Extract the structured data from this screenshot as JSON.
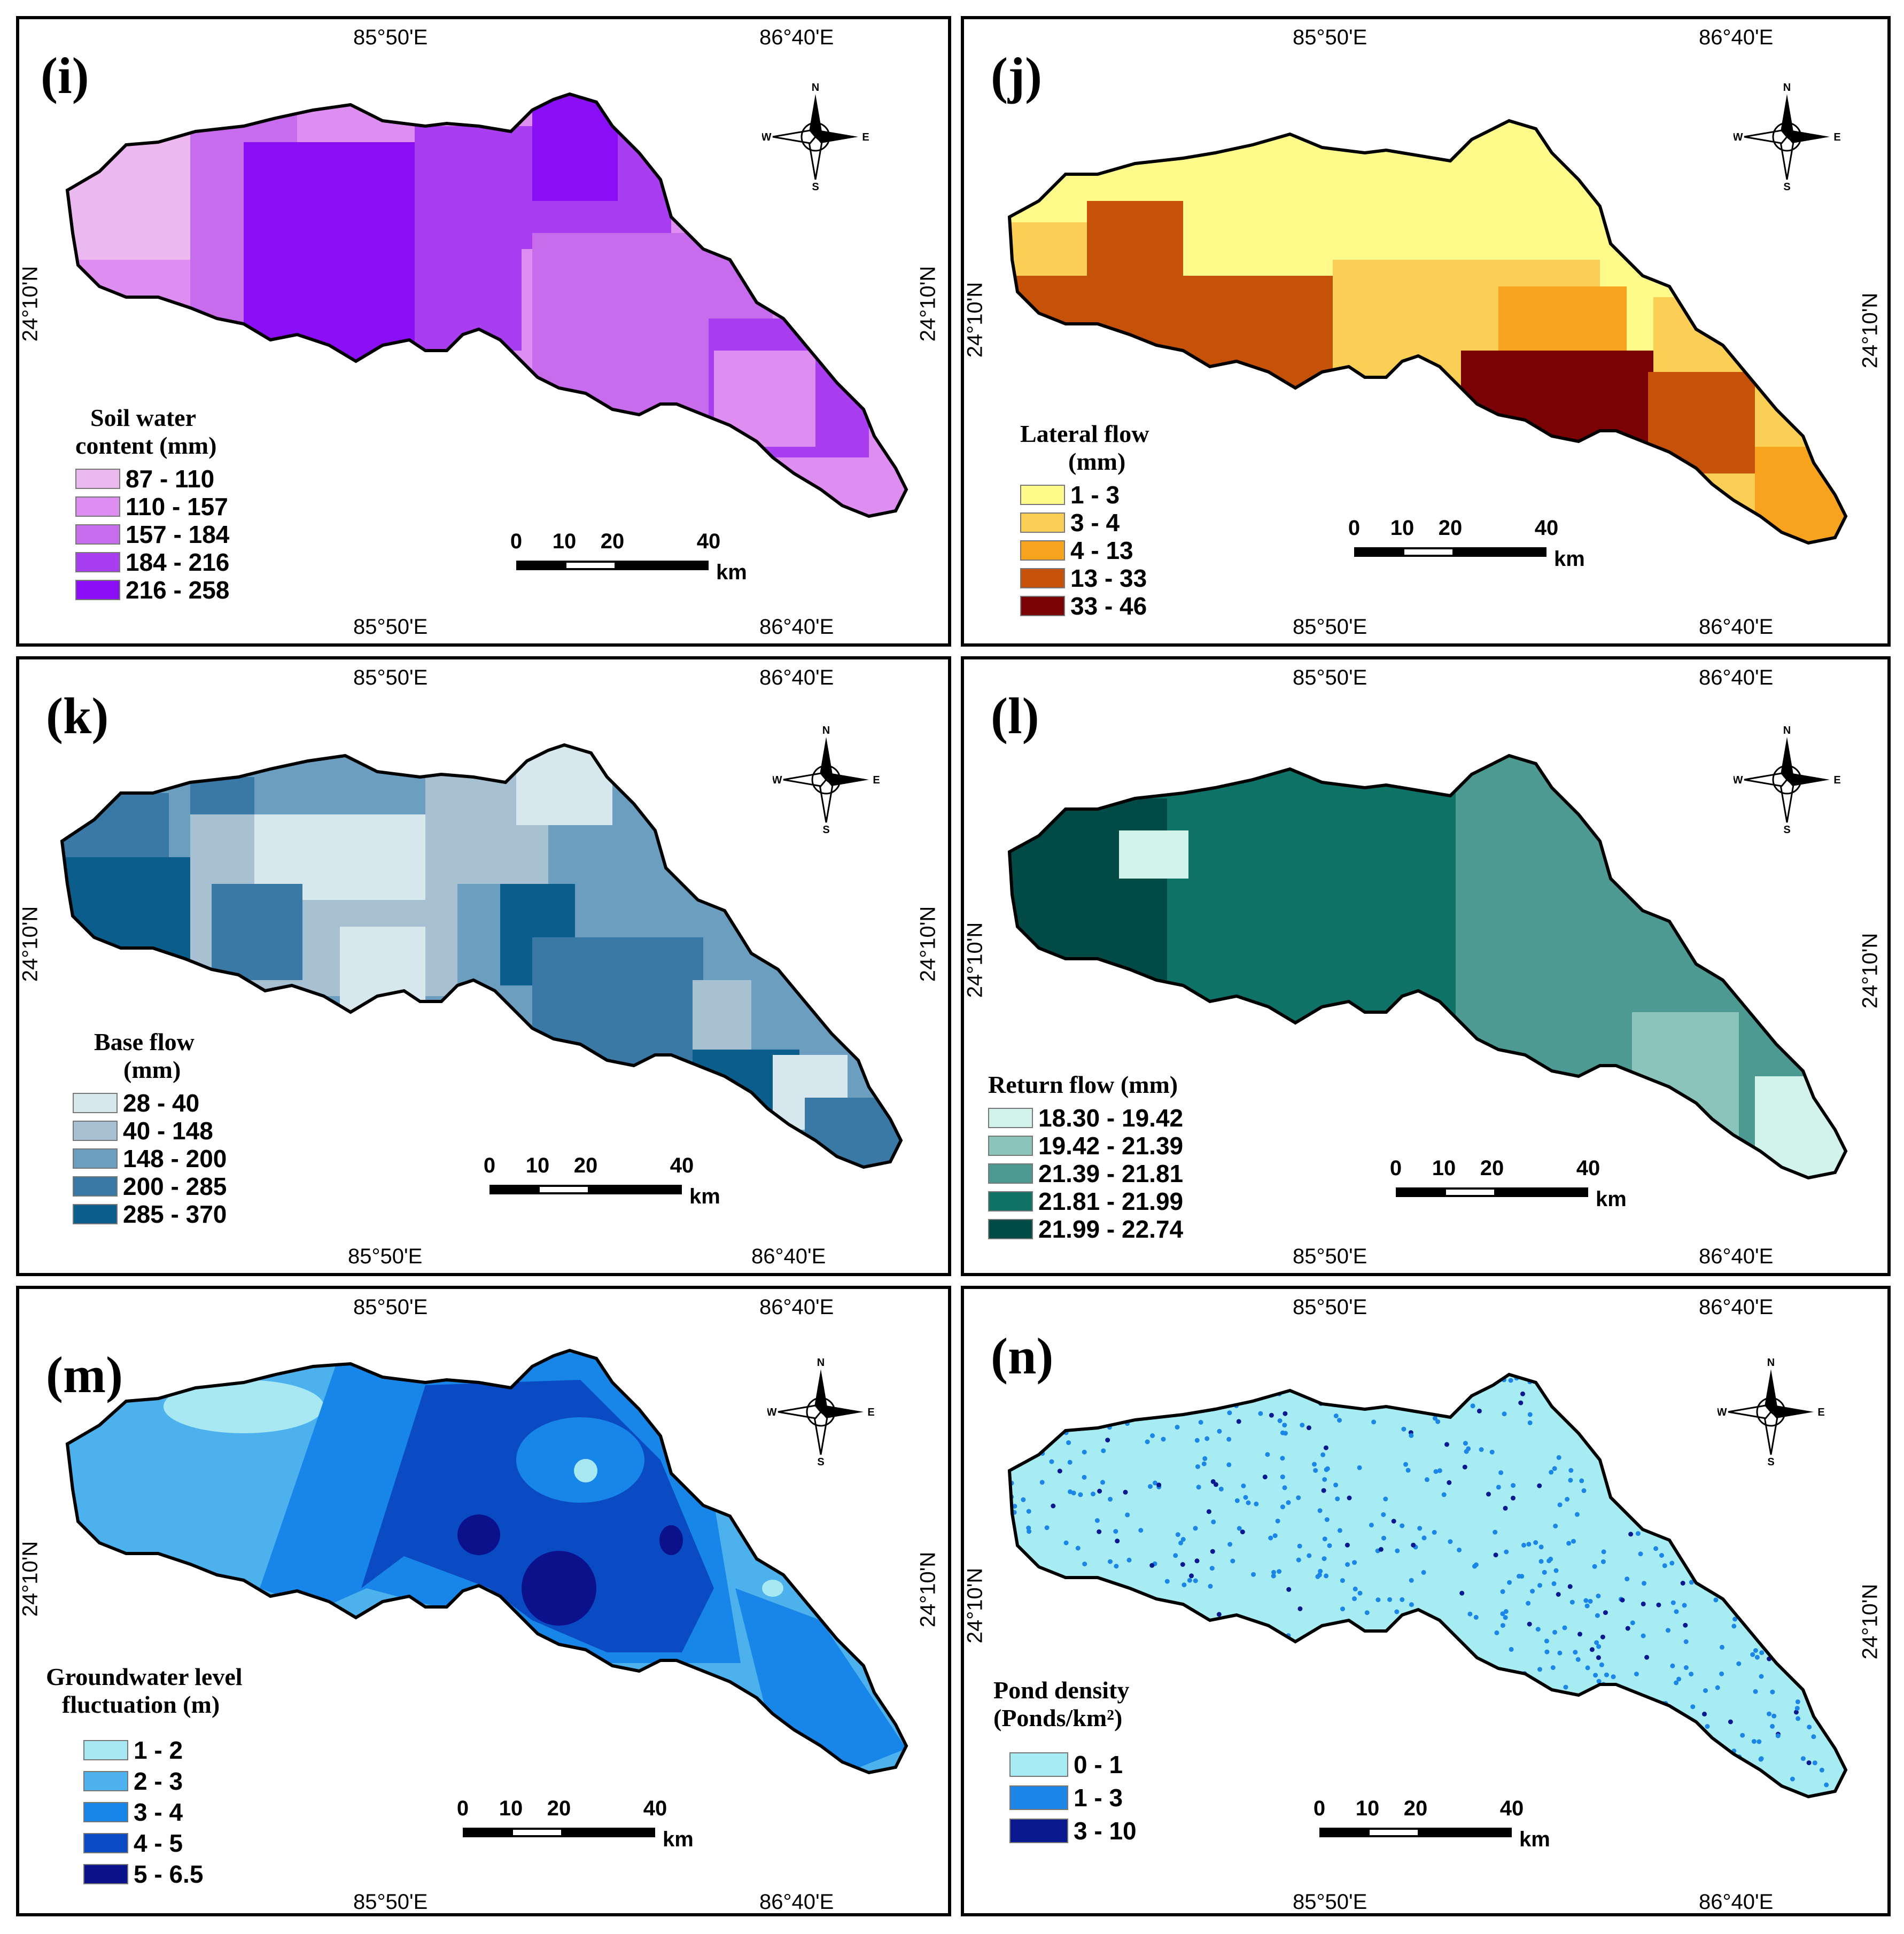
{
  "panels": [
    {
      "id": "i",
      "label": "(i)",
      "coords": {
        "top_left": "85°50'E",
        "top_right": "86°40'E",
        "bottom_left": "85°50'E",
        "bottom_right": "86°40'E",
        "lat_left": "24°10'N",
        "lat_right": "24°10'N"
      },
      "legend_title": [
        "Soil water",
        "content (mm)"
      ],
      "legend": [
        {
          "label": "87 - 110",
          "color": "#ebb9ef"
        },
        {
          "label": "110 - 157",
          "color": "#dd8ef0"
        },
        {
          "label": "157 - 184",
          "color": "#c76cec"
        },
        {
          "label": "184 - 216",
          "color": "#a93df0"
        },
        {
          "label": "216 - 258",
          "color": "#8a0ff5"
        }
      ]
    },
    {
      "id": "j",
      "label": "(j)",
      "coords": {
        "top_left": "85°50'E",
        "top_right": "86°40'E",
        "bottom_left": "85°50'E",
        "bottom_right": "86°40'E",
        "lat_left": "24°10'N",
        "lat_right": "24°10'N"
      },
      "legend_title": [
        "Lateral flow",
        "(mm)"
      ],
      "legend": [
        {
          "label": "1 - 3",
          "color": "#fffb8a"
        },
        {
          "label": "3 - 4",
          "color": "#fbce55"
        },
        {
          "label": "4 - 13",
          "color": "#f7a31e"
        },
        {
          "label": "13 - 33",
          "color": "#c55208"
        },
        {
          "label": "33 - 46",
          "color": "#7a0205"
        }
      ]
    },
    {
      "id": "k",
      "label": "(k)",
      "coords": {
        "top_left": "85°50'E",
        "top_right": "86°40'E",
        "bottom_left": "85°50'E",
        "bottom_right": "86°40'E",
        "lat_left": "24°10'N",
        "lat_right": "24°10'N"
      },
      "legend_title": [
        "Base flow",
        "(mm)"
      ],
      "legend": [
        {
          "label": "28 - 40",
          "color": "#d6e8ee"
        },
        {
          "label": "40 - 148",
          "color": "#a7c0d2"
        },
        {
          "label": "148 - 200",
          "color": "#6b9ebf"
        },
        {
          "label": "200 - 285",
          "color": "#3a79a5"
        },
        {
          "label": "285 - 370",
          "color": "#0b5e8c"
        }
      ]
    },
    {
      "id": "l",
      "label": "(l)",
      "coords": {
        "top_left": "85°50'E",
        "top_right": "86°40'E",
        "bottom_left": "85°50'E",
        "bottom_right": "86°40'E",
        "lat_left": "24°10'N",
        "lat_right": "24°10'N"
      },
      "legend_title": [
        "Return flow (mm)"
      ],
      "legend": [
        {
          "label": "18.30 - 19.42",
          "color": "#d2f3ec"
        },
        {
          "label": "19.42 - 21.39",
          "color": "#8bc4bb"
        },
        {
          "label": "21.39 - 21.81",
          "color": "#4d9a92"
        },
        {
          "label": "21.81 - 21.99",
          "color": "#0e7366"
        },
        {
          "label": "21.99 - 22.74",
          "color": "#024a45"
        }
      ]
    },
    {
      "id": "m",
      "label": "(m)",
      "coords": {
        "top_left": "85°50'E",
        "top_right": "86°40'E",
        "bottom_left": "85°50'E",
        "bottom_right": "86°40'E",
        "lat_left": "24°10'N",
        "lat_right": "24°10'N"
      },
      "legend_title": [
        "Groundwater level",
        "fluctuation (m)"
      ],
      "legend": [
        {
          "label": "1 - 2",
          "color": "#a8e8f3"
        },
        {
          "label": "2 - 3",
          "color": "#4cb1ec"
        },
        {
          "label": "3 - 4",
          "color": "#1786e8"
        },
        {
          "label": "4 - 5",
          "color": "#0a4bc4"
        },
        {
          "label": "5 - 6.5",
          "color": "#0a118a"
        }
      ]
    },
    {
      "id": "n",
      "label": "(n)",
      "coords": {
        "top_left": "85°50'E",
        "top_right": "86°40'E",
        "bottom_left": "85°50'E",
        "bottom_right": "86°40'E",
        "lat_left": "24°10'N",
        "lat_right": "24°10'N"
      },
      "legend_title": [
        "Pond density",
        "(Ponds/km²)"
      ],
      "legend": [
        {
          "label": "0 - 1",
          "color": "#a6ecf2"
        },
        {
          "label": "1 - 3",
          "color": "#1b86e6"
        },
        {
          "label": "3 - 10",
          "color": "#0a1990"
        }
      ]
    }
  ],
  "north_arrow": {
    "n": "N",
    "s": "S",
    "e": "E",
    "w": "W"
  },
  "scale_bar": {
    "ticks": [
      "0",
      "10",
      "20",
      "40"
    ],
    "unit": "km"
  }
}
